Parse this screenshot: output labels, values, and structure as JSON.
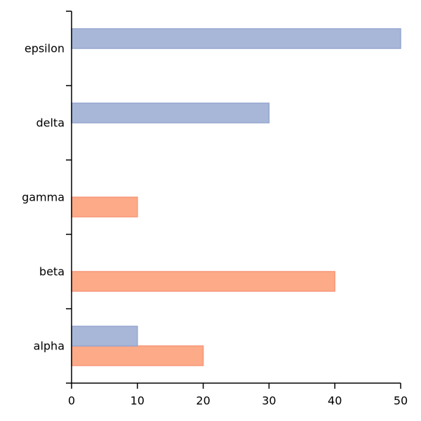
{
  "chart_data": {
    "type": "bar",
    "orientation": "horizontal",
    "categories": [
      "alpha",
      "beta",
      "gamma",
      "delta",
      "epsilon"
    ],
    "series": [
      {
        "values": [
          20,
          40,
          10,
          null,
          null
        ],
        "color": "#fcaa87",
        "edge_color": "#f7977a"
      },
      {
        "values": [
          10,
          null,
          null,
          30,
          50
        ],
        "color": "#a8b7d8",
        "edge_color": "#95a6cf"
      }
    ],
    "xlim": [
      0,
      50
    ],
    "xticks": [
      0,
      10,
      20,
      30,
      40,
      50
    ],
    "title": "",
    "xlabel": "",
    "ylabel": "",
    "grid": false,
    "legend": "none"
  }
}
